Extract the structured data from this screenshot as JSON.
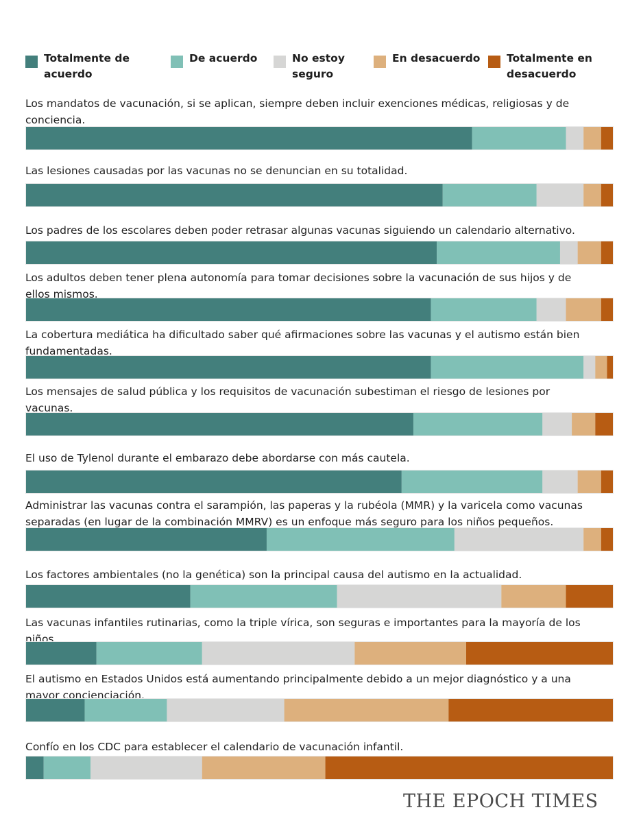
{
  "chart_data": {
    "type": "bar",
    "orientation": "horizontal",
    "stacked": true,
    "normalized_to": 100,
    "title": "",
    "xlabel": "",
    "ylabel": "",
    "legend_position": "top",
    "colors": [
      "#437f7c",
      "#80c0b6",
      "#d6d6d5",
      "#ddb07d",
      "#b75c13"
    ],
    "series": [
      {
        "name": "Totalmente de acuerdo",
        "label_lines": [
          "Totalmente de",
          "acuerdo"
        ],
        "values": [
          76,
          71,
          70,
          69,
          69,
          66,
          64,
          41,
          28,
          12,
          10,
          3
        ]
      },
      {
        "name": "De acuerdo",
        "label_lines": [
          "De acuerdo"
        ],
        "values": [
          16,
          16,
          21,
          18,
          26,
          22,
          24,
          32,
          25,
          18,
          14,
          8
        ]
      },
      {
        "name": "No estoy seguro",
        "label_lines": [
          "No estoy",
          "seguro"
        ],
        "values": [
          3,
          8,
          3,
          5,
          2,
          5,
          6,
          22,
          28,
          26,
          20,
          19
        ]
      },
      {
        "name": "En desacuerdo",
        "label_lines": [
          "En desacuerdo"
        ],
        "values": [
          3,
          3,
          4,
          6,
          2,
          4,
          4,
          3,
          11,
          19,
          28,
          21
        ]
      },
      {
        "name": "Totalmente en desacuerdo",
        "label_lines": [
          "Totalmente en",
          "desacuerdo"
        ],
        "values": [
          2,
          2,
          2,
          2,
          1,
          3,
          2,
          2,
          8,
          25,
          28,
          49
        ]
      }
    ],
    "categories": [
      [
        "Los mandatos de vacunación, si se aplican, siempre deben incluir exenciones médicas, religiosas y de",
        "conciencia."
      ],
      [
        "Las lesiones causadas por las vacunas no se denuncian en su totalidad."
      ],
      [
        "Los padres de los escolares deben poder retrasar algunas vacunas siguiendo un calendario alternativo."
      ],
      [
        "Los adultos deben tener plena autonomía para tomar decisiones sobre la vacunación de sus hijos y de",
        "ellos mismos."
      ],
      [
        "La cobertura mediática ha dificultado saber qué afirmaciones sobre las vacunas y el autismo están bien",
        "fundamentadas."
      ],
      [
        "Los mensajes de salud pública y los requisitos de vacunación subestiman el riesgo de lesiones por",
        "vacunas."
      ],
      [
        "El uso de Tylenol durante el embarazo debe abordarse con más cautela."
      ],
      [
        "Administrar las vacunas contra el sarampión, las paperas y la rubéola (MMR) y la varicela como vacunas",
        "separadas (en lugar de la combinación MMRV) es un enfoque más seguro para los niños pequeños."
      ],
      [
        "Los factores ambientales (no la genética) son la principal causa del autismo en la actualidad."
      ],
      [
        "Las vacunas infantiles rutinarias, como la triple vírica, son seguras e importantes para la mayoría de los",
        "niños."
      ],
      [
        "El autismo en Estados Unidos está aumentando principalmente debido a un mejor diagnóstico y a una",
        "mayor concienciación."
      ],
      [
        "Confío en los CDC para establecer el calendario de vacunación infantil."
      ]
    ]
  },
  "branding": {
    "logo_text": "THE EPOCH TIMES"
  }
}
